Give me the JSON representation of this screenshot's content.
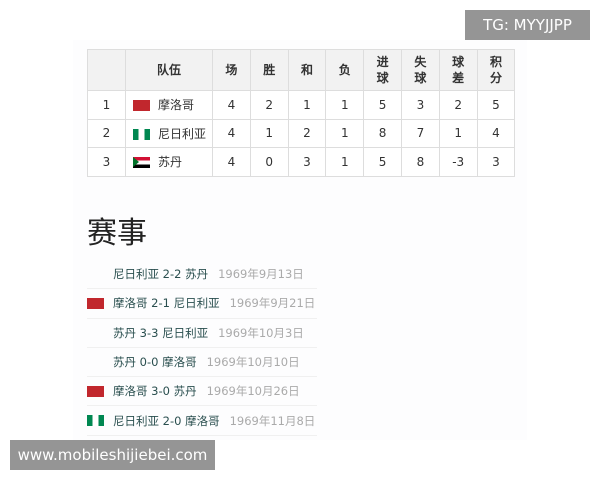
{
  "standings": {
    "headers": [
      "",
      "队伍",
      "场",
      "胜",
      "和",
      "负",
      "进\n球",
      "失\n球",
      "球\n差",
      "积\n分"
    ],
    "rows": [
      {
        "rank": "1",
        "flag": "morocco-flag",
        "team": "摩洛哥",
        "p": "4",
        "w": "2",
        "d": "1",
        "l": "1",
        "gf": "5",
        "ga": "3",
        "gd": "2",
        "pts": "5"
      },
      {
        "rank": "2",
        "flag": "nigeria-flag",
        "team": "尼日利亚",
        "p": "4",
        "w": "1",
        "d": "2",
        "l": "1",
        "gf": "8",
        "ga": "7",
        "gd": "1",
        "pts": "4"
      },
      {
        "rank": "3",
        "flag": "sudan-flag",
        "team": "苏丹",
        "p": "4",
        "w": "0",
        "d": "3",
        "l": "1",
        "gf": "5",
        "ga": "8",
        "gd": "-3",
        "pts": "3"
      }
    ]
  },
  "matches_title": "赛事",
  "matches": [
    {
      "flag": "",
      "result": "尼日利亚 2-2 苏丹",
      "date": "1969年9月13日"
    },
    {
      "flag": "morocco-flag",
      "result": "摩洛哥 2-1 尼日利亚",
      "date": "1969年9月21日"
    },
    {
      "flag": "",
      "result": "苏丹 3-3 尼日利亚",
      "date": "1969年10月3日"
    },
    {
      "flag": "",
      "result": "苏丹 0-0 摩洛哥",
      "date": "1969年10月10日"
    },
    {
      "flag": "morocco-flag",
      "result": "摩洛哥 3-0 苏丹",
      "date": "1969年10月26日"
    },
    {
      "flag": "nigeria-flag",
      "result": "尼日利亚 2-0 摩洛哥",
      "date": "1969年11月8日"
    }
  ],
  "watermarks": {
    "tg": "TG: MYYJJPP",
    "url": "www.mobileshijiebei.com"
  }
}
